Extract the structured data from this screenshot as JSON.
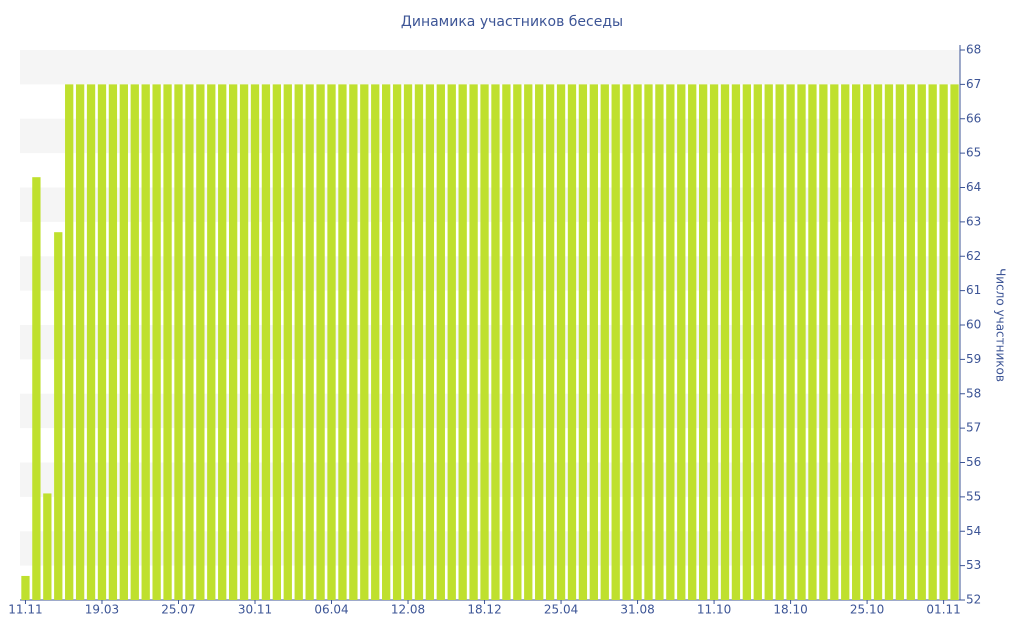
{
  "chart_data": {
    "type": "bar",
    "title": "Динамика участников беседы",
    "y_axis_label": "Число участников",
    "categories": [
      "11.11",
      null,
      null,
      null,
      null,
      null,
      null,
      "19.03",
      null,
      null,
      null,
      null,
      null,
      null,
      "25.07",
      null,
      null,
      null,
      null,
      null,
      null,
      "30.11",
      null,
      null,
      null,
      null,
      null,
      null,
      "06.04",
      null,
      null,
      null,
      null,
      null,
      null,
      "12.08",
      null,
      null,
      null,
      null,
      null,
      null,
      "18.12",
      null,
      null,
      null,
      null,
      null,
      null,
      "25.04",
      null,
      null,
      null,
      null,
      null,
      null,
      "31.08",
      null,
      null,
      null,
      null,
      null,
      null,
      "11.10",
      null,
      null,
      null,
      null,
      null,
      null,
      "18.10",
      null,
      null,
      null,
      null,
      null,
      null,
      "25.10",
      null,
      null,
      null,
      null,
      null,
      null,
      "01.11",
      null
    ],
    "values": [
      52.7,
      64.3,
      55.1,
      62.7,
      67,
      67,
      67,
      67,
      67,
      67,
      67,
      67,
      67,
      67,
      67,
      67,
      67,
      67,
      67,
      67,
      67,
      67,
      67,
      67,
      67,
      67,
      67,
      67,
      67,
      67,
      67,
      67,
      67,
      67,
      67,
      67,
      67,
      67,
      67,
      67,
      67,
      67,
      67,
      67,
      67,
      67,
      67,
      67,
      67,
      67,
      67,
      67,
      67,
      67,
      67,
      67,
      67,
      67,
      67,
      67,
      67,
      67,
      67,
      67,
      67,
      67,
      67,
      67,
      67,
      67,
      67,
      67,
      67,
      67,
      67,
      67,
      67,
      67,
      67,
      67,
      67,
      67,
      67,
      67,
      67,
      67
    ],
    "color": "#bfe02e",
    "ylim": [
      52,
      68
    ],
    "yticks": [
      52,
      53,
      54,
      55,
      56,
      57,
      58,
      59,
      60,
      61,
      62,
      63,
      64,
      65,
      66,
      67,
      68
    ],
    "y_axis_side": "right",
    "grid": true
  }
}
